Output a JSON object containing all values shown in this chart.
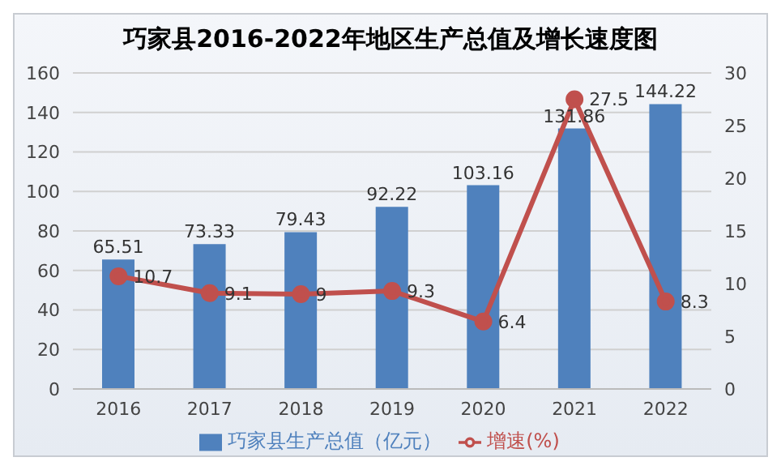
{
  "chart_data": {
    "type": "bar",
    "title": "巧家县2016-2022年地区生产总值及增长速度图",
    "categories": [
      "2016",
      "2017",
      "2018",
      "2019",
      "2020",
      "2021",
      "2022"
    ],
    "series": [
      {
        "name": "巧家县生产总值（亿元）",
        "color": "#4f81bd",
        "values": [
          65.51,
          73.33,
          79.43,
          92.22,
          103.16,
          131.86,
          144.22
        ]
      },
      {
        "name": "增速(%)",
        "type": "line",
        "axis": "y2",
        "color": "#c0504d",
        "values": [
          10.7,
          9.1,
          9,
          9.3,
          6.4,
          27.5,
          8.3
        ]
      }
    ],
    "ylim": [
      0,
      160
    ],
    "yticks": [
      0,
      20,
      40,
      60,
      80,
      100,
      120,
      140,
      160
    ],
    "y2lim": [
      0,
      30
    ],
    "y2ticks": [
      0,
      5,
      10,
      15,
      20,
      25,
      30
    ],
    "grid": "y",
    "legend": "bottom",
    "data_labels": true,
    "marker": "circle",
    "line_style": "solid"
  }
}
